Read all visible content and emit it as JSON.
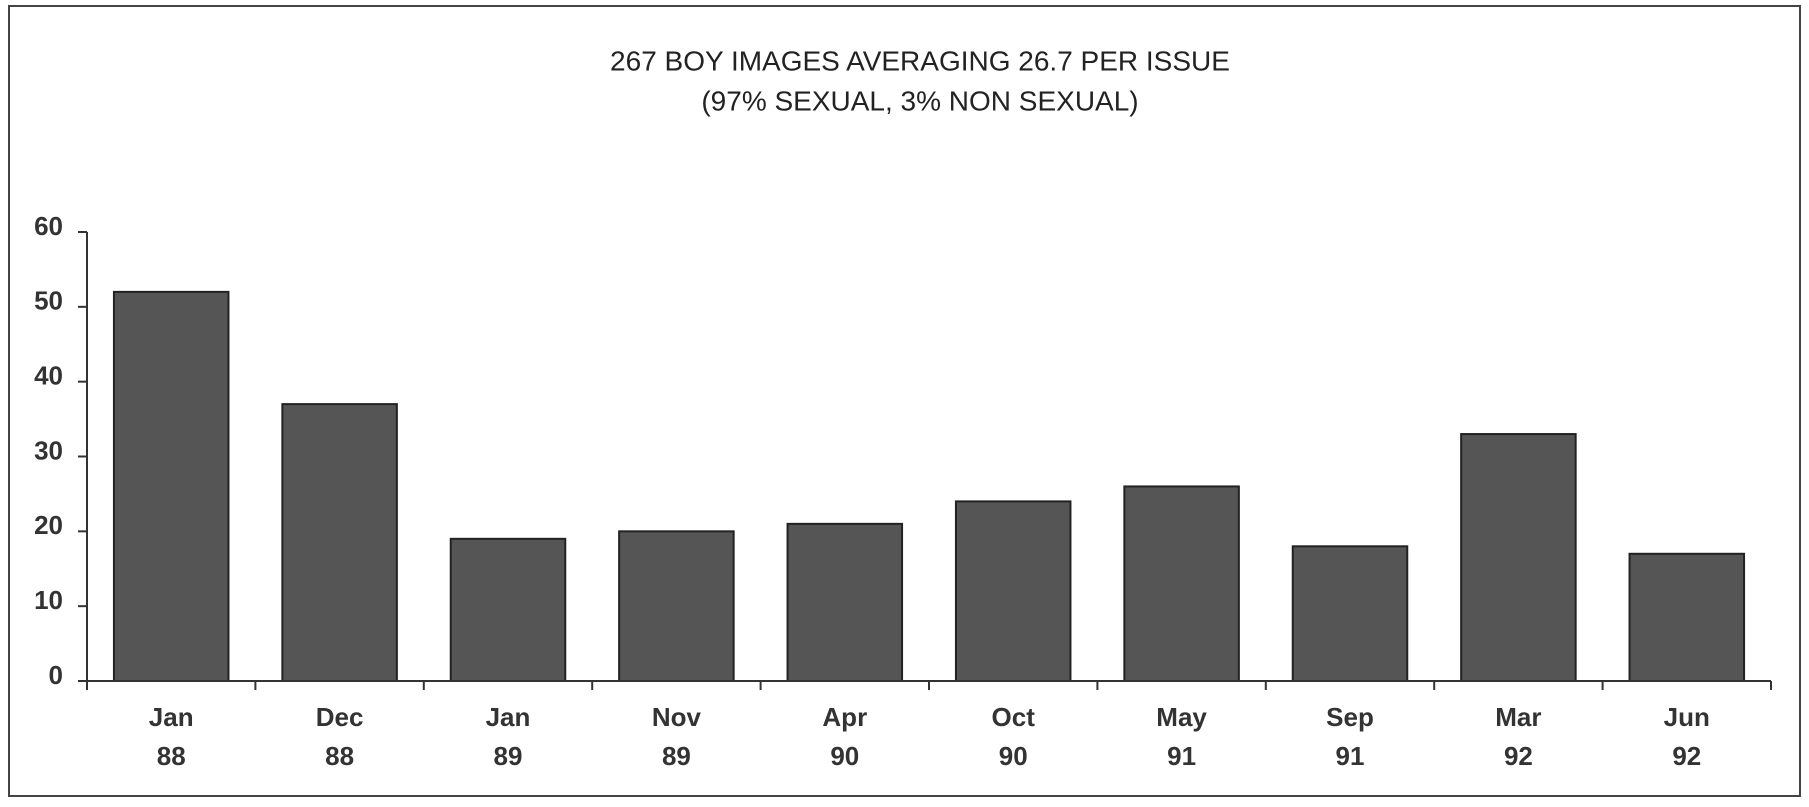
{
  "chart_data": {
    "type": "bar",
    "title": "267 BOY IMAGES AVERAGING 26.7 PER ISSUE",
    "subtitle": "(97% SEXUAL, 3% NON SEXUAL)",
    "categories": [
      [
        "Jan",
        "88"
      ],
      [
        "Dec",
        "88"
      ],
      [
        "Jan",
        "89"
      ],
      [
        "Nov",
        "89"
      ],
      [
        "Apr",
        "90"
      ],
      [
        "Oct",
        "90"
      ],
      [
        "May",
        "91"
      ],
      [
        "Sep",
        "91"
      ],
      [
        "Mar",
        "92"
      ],
      [
        "Jun",
        "92"
      ]
    ],
    "values": [
      52,
      37,
      19,
      20,
      21,
      24,
      26,
      18,
      33,
      17
    ],
    "color": "#555555",
    "ylim": [
      0,
      60
    ],
    "yticks": [
      0,
      10,
      20,
      30,
      40,
      50,
      60
    ],
    "grid": false
  }
}
